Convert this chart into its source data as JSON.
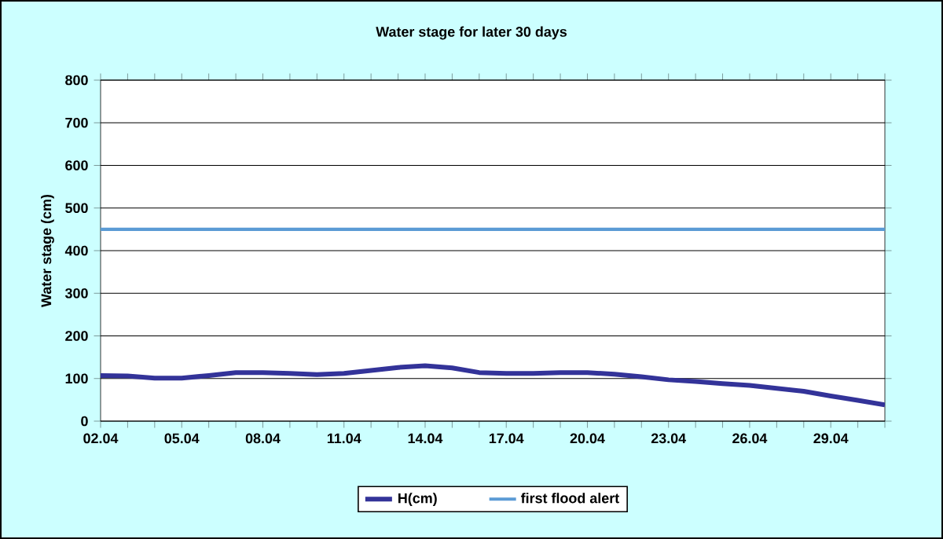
{
  "chart_data": {
    "type": "line",
    "title": "Water stage for later 30 days",
    "ylabel": "Water stage (cm)",
    "categories": [
      "02.04",
      null,
      null,
      "05.04",
      null,
      null,
      "08.04",
      null,
      null,
      "11.04",
      null,
      null,
      "14.04",
      null,
      null,
      "17.04",
      null,
      null,
      "20.04",
      null,
      null,
      "23.04",
      null,
      null,
      "26.04",
      null,
      null,
      "29.04",
      null,
      null
    ],
    "series": [
      {
        "name": "H(cm)",
        "color": "#333399",
        "values": [
          107,
          106,
          101,
          101,
          107,
          114,
          114,
          112,
          109,
          112,
          119,
          126,
          130,
          125,
          114,
          112,
          112,
          114,
          114,
          110,
          104,
          97,
          93,
          88,
          84,
          77,
          70,
          59,
          49,
          38
        ]
      }
    ],
    "ref_lines": [
      {
        "axis": "y",
        "value": 450,
        "label": "first flood alert",
        "color": "#5b9bd5"
      }
    ],
    "ylim": [
      0,
      800
    ],
    "yticks": [
      0,
      100,
      200,
      300,
      400,
      500,
      600,
      700,
      800
    ],
    "grid": "y",
    "legend": "bottom",
    "marker": "none",
    "line_style": "solid"
  }
}
